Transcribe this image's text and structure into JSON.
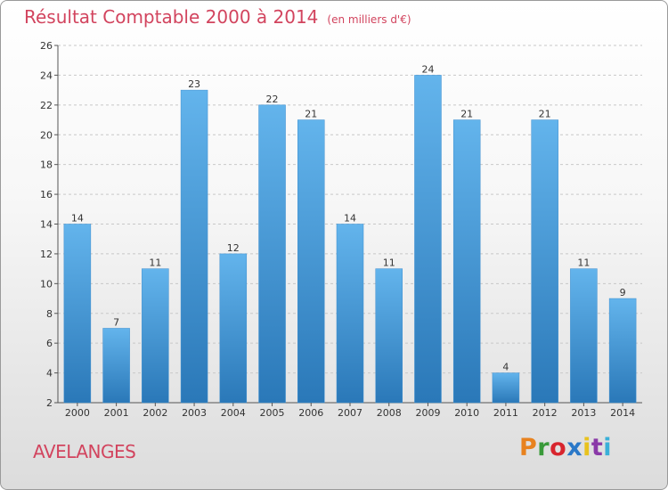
{
  "header": {
    "title": "Résultat Comptable 2000 à 2014",
    "subtitle": "(en milliers d'€)"
  },
  "footer": {
    "commune": "AVELANGES",
    "logo": "Proxiti"
  },
  "colors": {
    "title": "#d2445e",
    "bar_top": "#63b4ec",
    "bar_bottom": "#2a78b8",
    "grid": "#c8c8c8",
    "logo_letters": [
      "#e8821e",
      "#3a9a3a",
      "#d8252e",
      "#2a78c8",
      "#e8c21e",
      "#8a3aa8",
      "#3ab0d8"
    ]
  },
  "chart_data": {
    "type": "bar",
    "categories": [
      "2000",
      "2001",
      "2002",
      "2003",
      "2004",
      "2005",
      "2006",
      "2007",
      "2008",
      "2009",
      "2010",
      "2011",
      "2012",
      "2013",
      "2014"
    ],
    "values": [
      14,
      7,
      11,
      23,
      12,
      22,
      21,
      14,
      11,
      24,
      21,
      4,
      21,
      11,
      9
    ],
    "title": "Résultat Comptable 2000 à 2014",
    "subtitle": "(en milliers d'€)",
    "xlabel": "",
    "ylabel": "",
    "ylim": [
      2,
      26
    ],
    "yticks": [
      2,
      4,
      6,
      8,
      10,
      12,
      14,
      16,
      18,
      20,
      22,
      24,
      26
    ],
    "grid": true,
    "data_labels": true,
    "legend": "none"
  }
}
